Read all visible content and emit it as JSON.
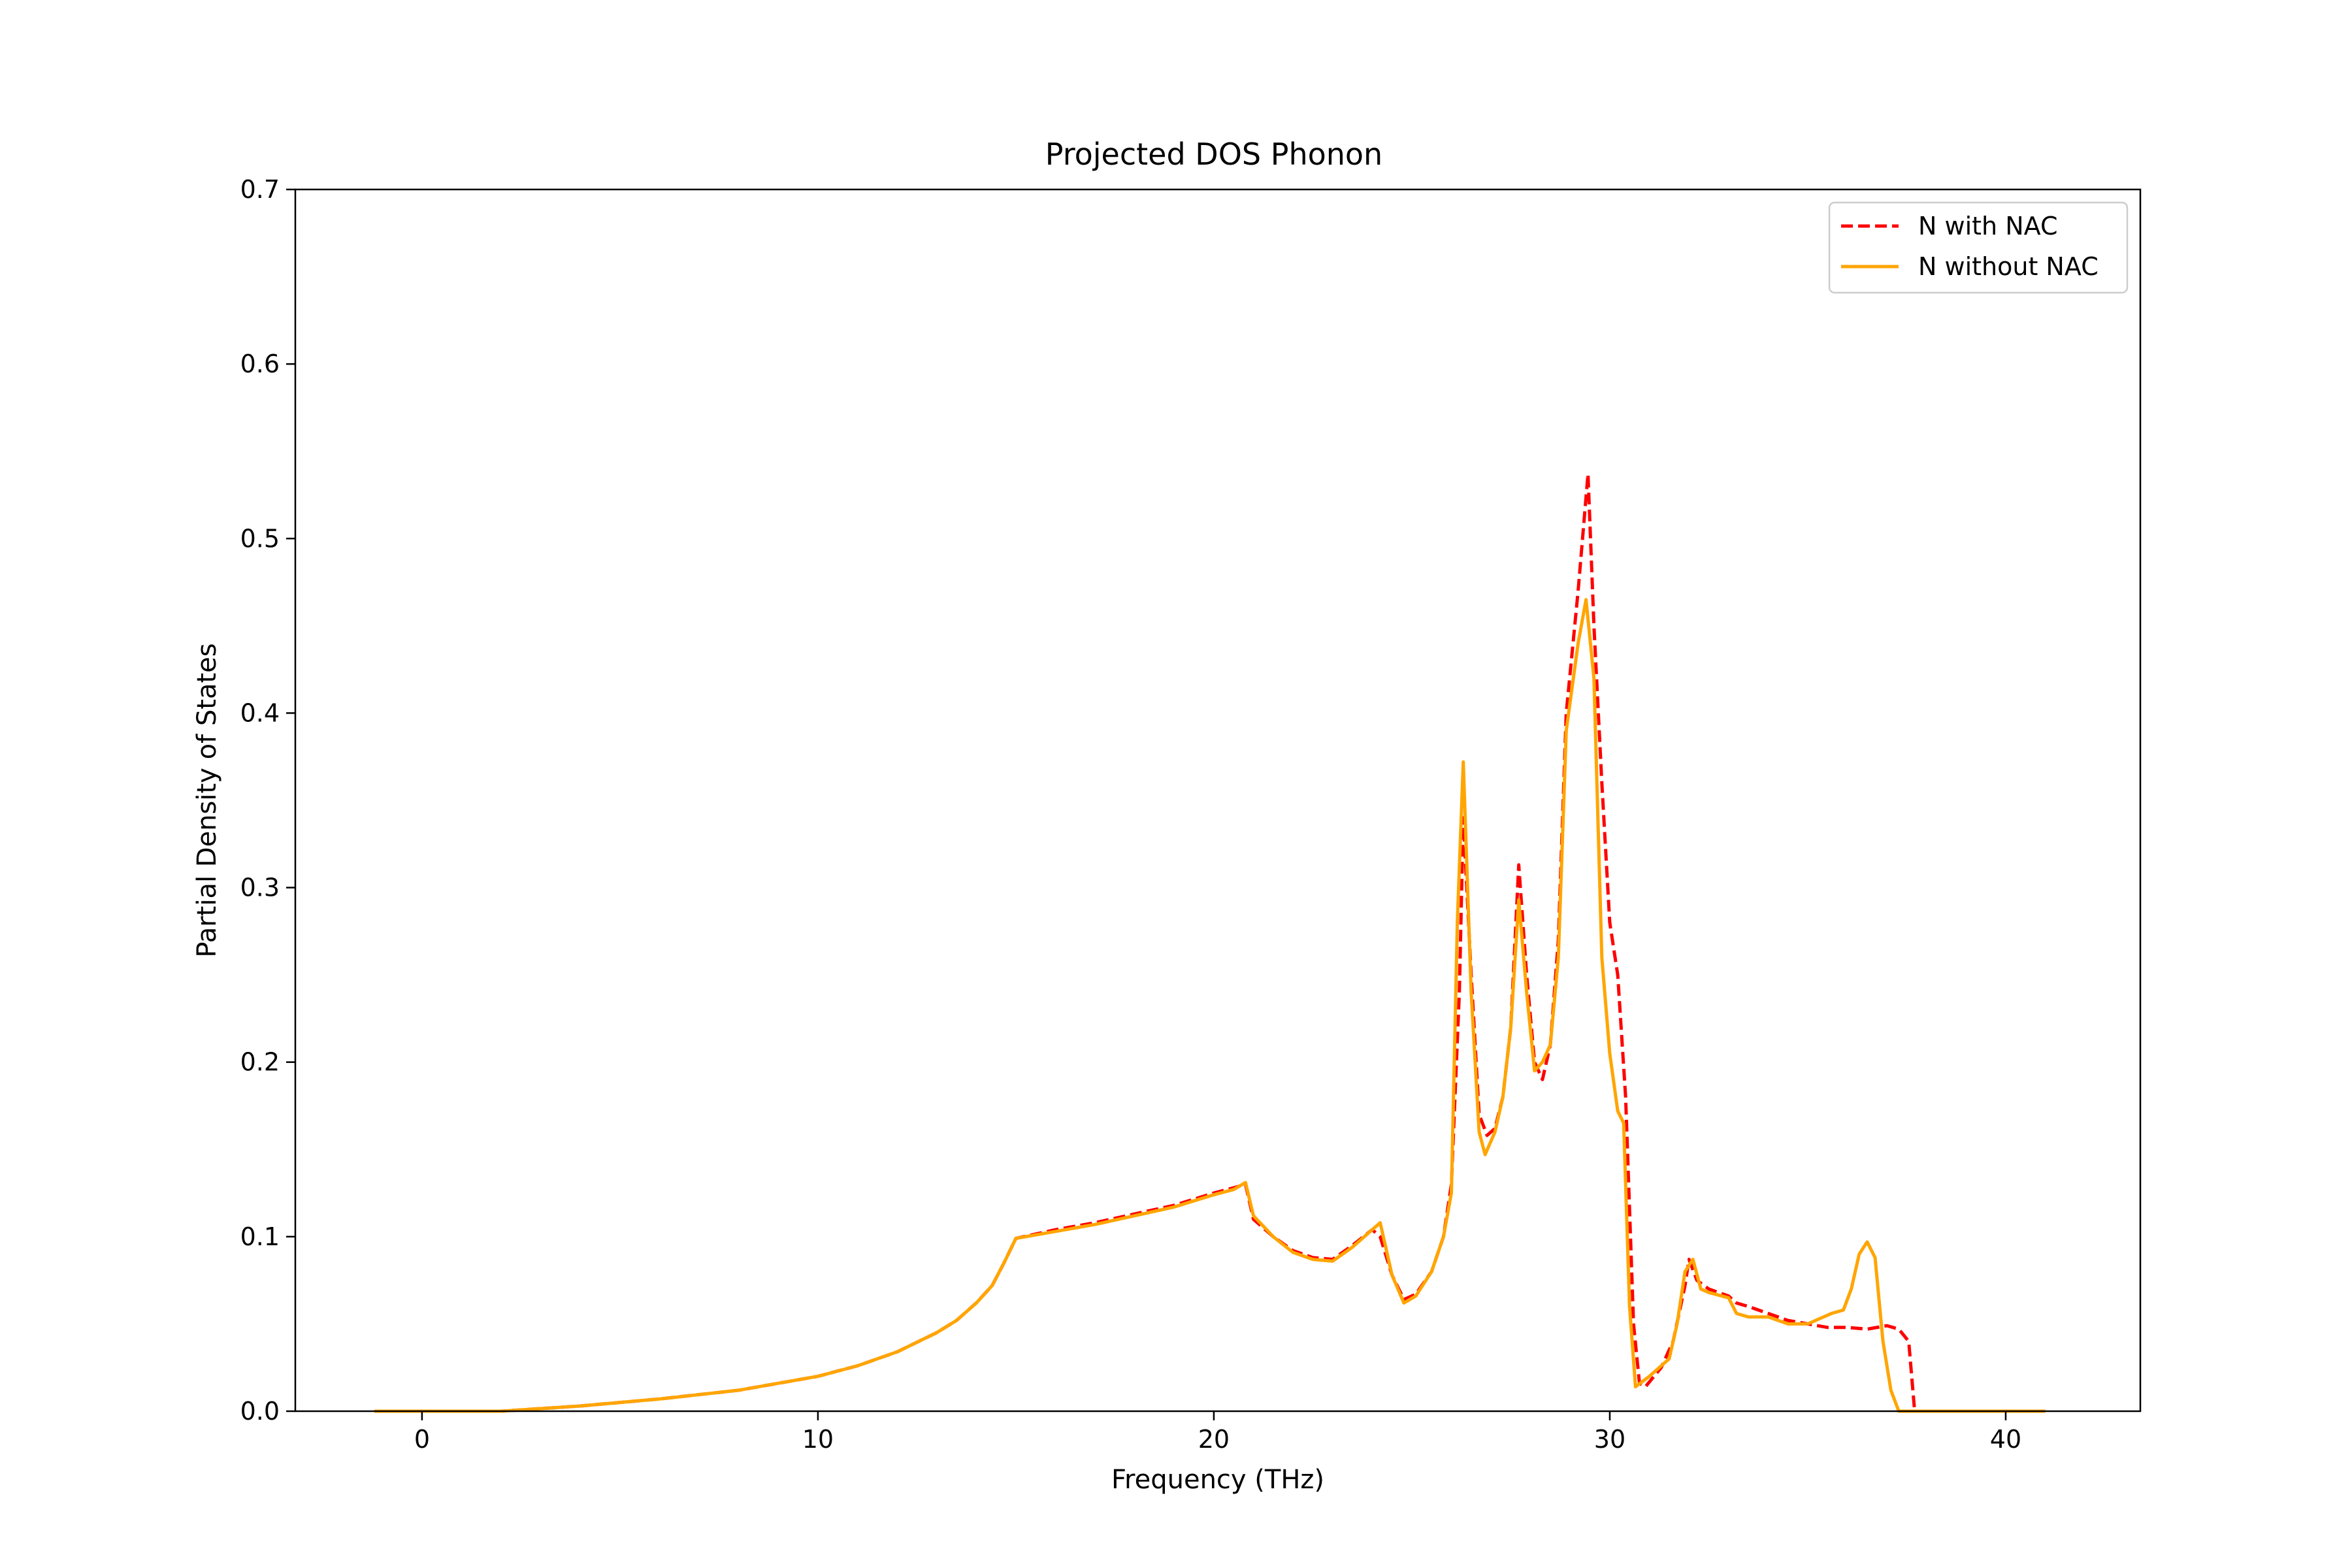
{
  "chart_data": {
    "type": "line",
    "title": "Projected DOS Phonon",
    "xlabel": "Frequency (THz)",
    "ylabel": "Partial Density of States",
    "xlim": [
      -3.2,
      43.4
    ],
    "ylim": [
      0.0,
      0.7
    ],
    "xticks": [
      0,
      10,
      20,
      30,
      40
    ],
    "yticks": [
      0.0,
      0.1,
      0.2,
      0.3,
      0.4,
      0.5,
      0.6,
      0.7
    ],
    "xtick_labels": [
      "0",
      "10",
      "20",
      "30",
      "40"
    ],
    "ytick_labels": [
      "0.0",
      "0.1",
      "0.2",
      "0.3",
      "0.4",
      "0.5",
      "0.6",
      "0.7"
    ],
    "grid": false,
    "legend_position": "upper-right",
    "series": [
      {
        "name": "N with NAC",
        "color": "#ff0000",
        "style": "dashed",
        "points": [
          [
            -1.2,
            0.0
          ],
          [
            0.0,
            0.0
          ],
          [
            2.0,
            0.0
          ],
          [
            4.0,
            0.003
          ],
          [
            6.0,
            0.007
          ],
          [
            8.0,
            0.012
          ],
          [
            10.0,
            0.02
          ],
          [
            11.0,
            0.026
          ],
          [
            12.0,
            0.034
          ],
          [
            13.0,
            0.045
          ],
          [
            13.5,
            0.052
          ],
          [
            14.0,
            0.062
          ],
          [
            14.4,
            0.072
          ],
          [
            14.7,
            0.085
          ],
          [
            15.0,
            0.099
          ],
          [
            16.0,
            0.104
          ],
          [
            17.0,
            0.108
          ],
          [
            18.0,
            0.113
          ],
          [
            19.0,
            0.118
          ],
          [
            20.0,
            0.125
          ],
          [
            20.5,
            0.128
          ],
          [
            20.8,
            0.13
          ],
          [
            21.0,
            0.11
          ],
          [
            21.5,
            0.1
          ],
          [
            22.0,
            0.092
          ],
          [
            22.5,
            0.088
          ],
          [
            23.0,
            0.087
          ],
          [
            23.5,
            0.095
          ],
          [
            24.0,
            0.104
          ],
          [
            24.2,
            0.1
          ],
          [
            24.5,
            0.078
          ],
          [
            24.8,
            0.064
          ],
          [
            25.1,
            0.067
          ],
          [
            25.5,
            0.08
          ],
          [
            25.8,
            0.1
          ],
          [
            26.0,
            0.13
          ],
          [
            26.2,
            0.24
          ],
          [
            26.3,
            0.34
          ],
          [
            26.5,
            0.25
          ],
          [
            26.7,
            0.17
          ],
          [
            26.9,
            0.158
          ],
          [
            27.1,
            0.162
          ],
          [
            27.3,
            0.18
          ],
          [
            27.5,
            0.22
          ],
          [
            27.7,
            0.313
          ],
          [
            27.9,
            0.25
          ],
          [
            28.1,
            0.2
          ],
          [
            28.3,
            0.19
          ],
          [
            28.5,
            0.21
          ],
          [
            28.7,
            0.27
          ],
          [
            28.9,
            0.4
          ],
          [
            29.2,
            0.47
          ],
          [
            29.45,
            0.537
          ],
          [
            29.6,
            0.45
          ],
          [
            29.8,
            0.36
          ],
          [
            30.0,
            0.28
          ],
          [
            30.2,
            0.25
          ],
          [
            30.4,
            0.18
          ],
          [
            30.6,
            0.05
          ],
          [
            30.75,
            0.016
          ],
          [
            30.9,
            0.014
          ],
          [
            31.3,
            0.025
          ],
          [
            31.6,
            0.04
          ],
          [
            31.9,
            0.072
          ],
          [
            32.0,
            0.087
          ],
          [
            32.2,
            0.075
          ],
          [
            32.5,
            0.07
          ],
          [
            33.0,
            0.066
          ],
          [
            33.2,
            0.062
          ],
          [
            33.5,
            0.06
          ],
          [
            34.0,
            0.056
          ],
          [
            34.5,
            0.052
          ],
          [
            35.0,
            0.05
          ],
          [
            35.5,
            0.048
          ],
          [
            36.0,
            0.048
          ],
          [
            36.5,
            0.047
          ],
          [
            37.0,
            0.049
          ],
          [
            37.3,
            0.047
          ],
          [
            37.55,
            0.04
          ],
          [
            37.7,
            0.0
          ],
          [
            38.5,
            0.0
          ],
          [
            41.0,
            0.0
          ]
        ]
      },
      {
        "name": "N without NAC",
        "color": "#ffa500",
        "style": "solid",
        "points": [
          [
            -1.2,
            0.0
          ],
          [
            0.0,
            0.0
          ],
          [
            2.0,
            0.0
          ],
          [
            4.0,
            0.003
          ],
          [
            6.0,
            0.007
          ],
          [
            8.0,
            0.012
          ],
          [
            10.0,
            0.02
          ],
          [
            11.0,
            0.026
          ],
          [
            12.0,
            0.034
          ],
          [
            13.0,
            0.045
          ],
          [
            13.5,
            0.052
          ],
          [
            14.0,
            0.062
          ],
          [
            14.4,
            0.072
          ],
          [
            14.7,
            0.085
          ],
          [
            15.0,
            0.099
          ],
          [
            16.0,
            0.103
          ],
          [
            17.0,
            0.107
          ],
          [
            18.0,
            0.112
          ],
          [
            19.0,
            0.117
          ],
          [
            20.0,
            0.124
          ],
          [
            20.5,
            0.127
          ],
          [
            20.8,
            0.131
          ],
          [
            21.0,
            0.112
          ],
          [
            21.5,
            0.1
          ],
          [
            22.0,
            0.091
          ],
          [
            22.5,
            0.087
          ],
          [
            23.0,
            0.086
          ],
          [
            23.5,
            0.094
          ],
          [
            24.0,
            0.104
          ],
          [
            24.2,
            0.108
          ],
          [
            24.5,
            0.078
          ],
          [
            24.8,
            0.062
          ],
          [
            25.1,
            0.066
          ],
          [
            25.5,
            0.08
          ],
          [
            25.8,
            0.1
          ],
          [
            26.0,
            0.125
          ],
          [
            26.15,
            0.28
          ],
          [
            26.3,
            0.372
          ],
          [
            26.5,
            0.24
          ],
          [
            26.7,
            0.16
          ],
          [
            26.85,
            0.147
          ],
          [
            27.1,
            0.16
          ],
          [
            27.3,
            0.18
          ],
          [
            27.5,
            0.22
          ],
          [
            27.7,
            0.293
          ],
          [
            27.9,
            0.24
          ],
          [
            28.1,
            0.195
          ],
          [
            28.3,
            0.2
          ],
          [
            28.5,
            0.21
          ],
          [
            28.7,
            0.26
          ],
          [
            28.9,
            0.39
          ],
          [
            29.2,
            0.44
          ],
          [
            29.4,
            0.465
          ],
          [
            29.6,
            0.42
          ],
          [
            29.8,
            0.26
          ],
          [
            30.0,
            0.205
          ],
          [
            30.2,
            0.172
          ],
          [
            30.35,
            0.165
          ],
          [
            30.5,
            0.06
          ],
          [
            30.65,
            0.014
          ],
          [
            31.0,
            0.02
          ],
          [
            31.5,
            0.03
          ],
          [
            31.7,
            0.05
          ],
          [
            31.9,
            0.08
          ],
          [
            32.1,
            0.087
          ],
          [
            32.3,
            0.07
          ],
          [
            32.5,
            0.068
          ],
          [
            33.0,
            0.065
          ],
          [
            33.2,
            0.056
          ],
          [
            33.5,
            0.054
          ],
          [
            34.0,
            0.054
          ],
          [
            34.5,
            0.05
          ],
          [
            35.0,
            0.05
          ],
          [
            35.3,
            0.053
          ],
          [
            35.6,
            0.056
          ],
          [
            35.9,
            0.058
          ],
          [
            36.1,
            0.07
          ],
          [
            36.3,
            0.09
          ],
          [
            36.5,
            0.097
          ],
          [
            36.7,
            0.088
          ],
          [
            36.9,
            0.04
          ],
          [
            37.1,
            0.012
          ],
          [
            37.3,
            0.0
          ],
          [
            38.0,
            0.0
          ],
          [
            41.0,
            0.0
          ]
        ]
      }
    ]
  }
}
